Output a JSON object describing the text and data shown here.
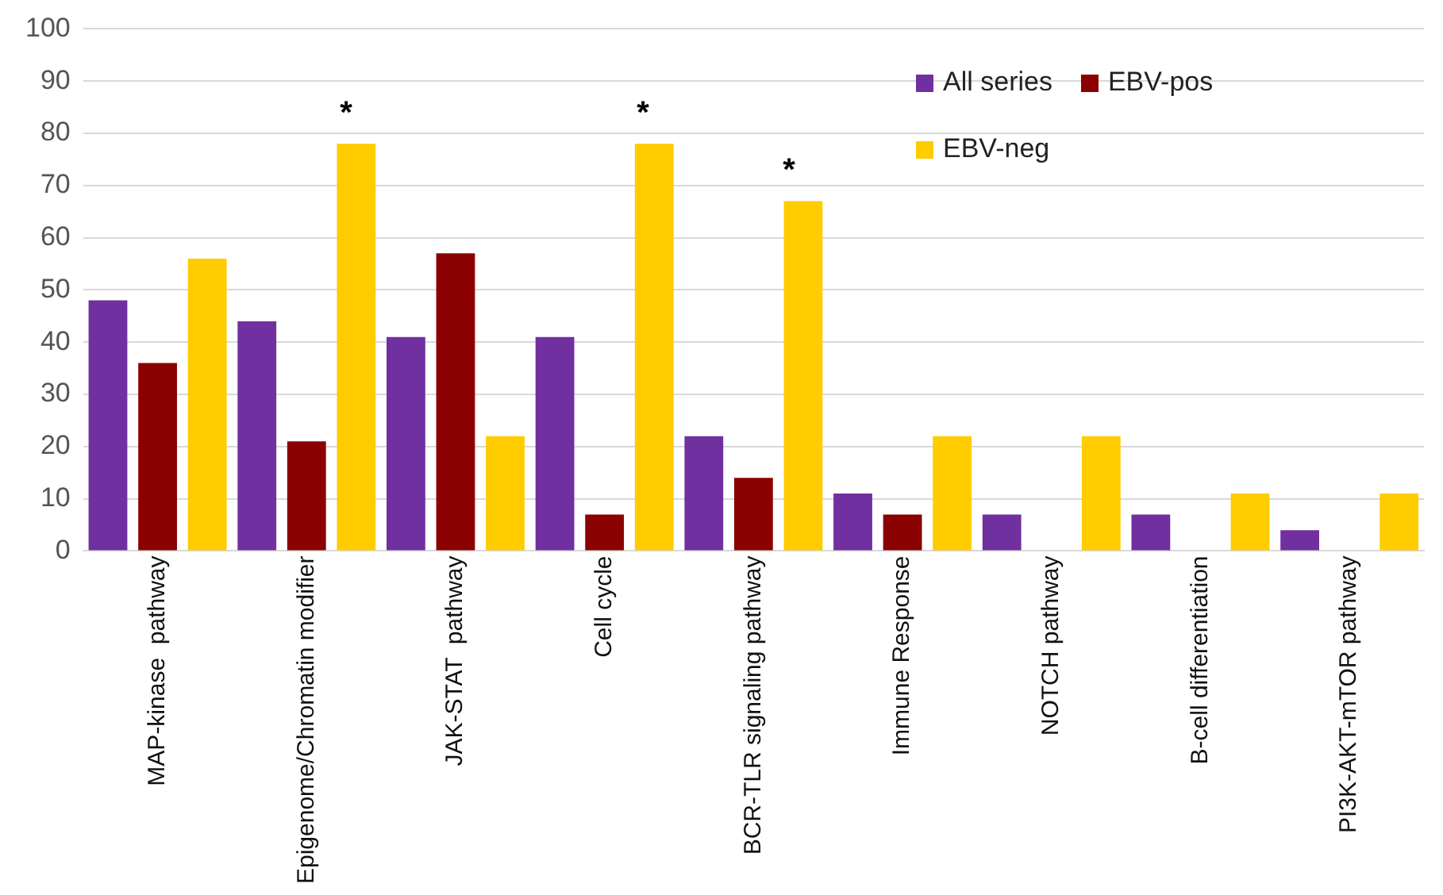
{
  "chart_data": {
    "type": "bar",
    "categories": [
      "MAP-kinase  pathway",
      "Epigenome/Chromatin modifier",
      "JAK-STAT  pathway",
      "Cell cycle",
      "BCR-TLR signaling pathway",
      "Immune Response",
      "NOTCH pathway",
      "B-cell differentiation",
      "PI3K-AKT-mTOR pathway"
    ],
    "series": [
      {
        "name": "All series",
        "color": "#7030a0",
        "values": [
          48,
          44,
          41,
          41,
          22,
          11,
          7,
          7,
          4
        ]
      },
      {
        "name": "EBV-pos",
        "color": "#8b0000",
        "values": [
          36,
          21,
          57,
          7,
          14,
          7,
          0,
          0,
          0
        ]
      },
      {
        "name": "EBV-neg",
        "color": "#ffcc00",
        "values": [
          56,
          78,
          22,
          78,
          67,
          22,
          22,
          11,
          11
        ]
      }
    ],
    "ylim": [
      0,
      100
    ],
    "yticks": [
      0,
      10,
      20,
      30,
      40,
      50,
      60,
      70,
      80,
      90,
      100
    ],
    "grid": "y",
    "legend": "top right",
    "annotations": [
      "*",
      "*",
      "*"
    ]
  }
}
